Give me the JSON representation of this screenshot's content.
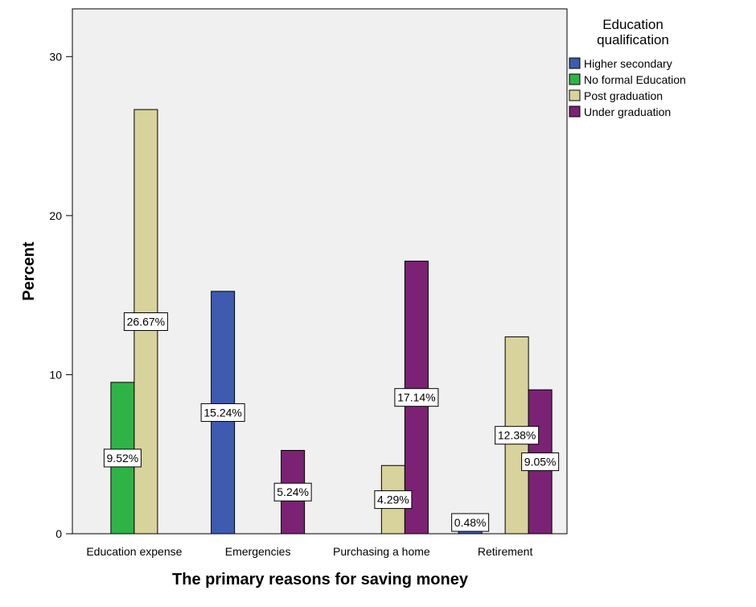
{
  "chart_data": {
    "type": "bar",
    "xlabel": "The primary reasons for saving money",
    "ylabel": "Percent",
    "categories": [
      "Education expense",
      "Emergencies",
      "Purchasing a home",
      "Retirement"
    ],
    "ylim": [
      0,
      33
    ],
    "yticks": [
      0,
      10,
      20,
      30
    ],
    "grid": false,
    "legend": {
      "title_lines": [
        "Education",
        "qualification"
      ],
      "placement": "right"
    },
    "series": [
      {
        "name": "Higher secondary",
        "color": "#3f5bb0",
        "values": [
          null,
          15.24,
          null,
          0.48
        ],
        "labels": [
          null,
          "15.24%",
          null,
          "0.48%"
        ]
      },
      {
        "name": "No formal Education",
        "color": "#2fb347",
        "values": [
          9.52,
          null,
          null,
          null
        ],
        "labels": [
          "9.52%",
          null,
          null,
          null
        ]
      },
      {
        "name": "Post graduation",
        "color": "#d8d29c",
        "values": [
          26.67,
          null,
          4.29,
          12.38
        ],
        "labels": [
          "26.67%",
          null,
          "4.29%",
          "12.38%"
        ]
      },
      {
        "name": "Under graduation",
        "color": "#7b2275",
        "values": [
          null,
          5.24,
          17.14,
          9.05
        ],
        "labels": [
          null,
          "5.24%",
          "17.14%",
          "9.05%"
        ]
      }
    ]
  }
}
